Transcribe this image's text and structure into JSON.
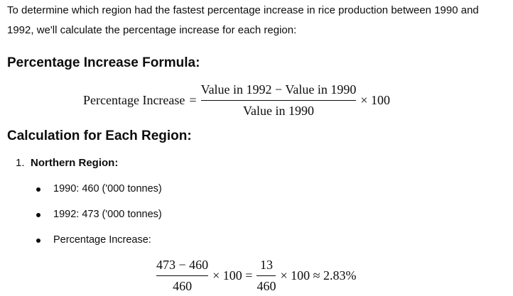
{
  "paragraph": [
    "To determine which region had the fastest percentage increase in rice production between 1990 and",
    "1992, we'll calculate the percentage increase for each region:"
  ],
  "formula_heading": "Percentage Increase Formula:",
  "formula": {
    "lhs": "Percentage Increase",
    "equals": "=",
    "numerator": "Value in 1992 − Value in 1990",
    "denominator": "Value in 1990",
    "multiplier": "× 100"
  },
  "calc_heading": "Calculation for Each Region:",
  "regions": [
    {
      "number": "1.",
      "name": "Northern Region:",
      "items": [
        "1990: 460 ('000 tonnes)",
        "1992: 473 ('000 tonnes)",
        "Percentage Increase:"
      ],
      "calculation": {
        "numerator1": "473 − 460",
        "denominator1": "460",
        "times1": "× 100 =",
        "numerator2": "13",
        "denominator2": "460",
        "result": "× 100 ≈ 2.83%"
      }
    }
  ]
}
